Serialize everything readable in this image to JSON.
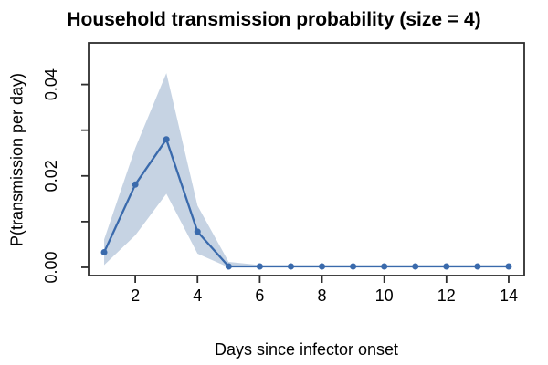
{
  "chart_data": {
    "type": "line",
    "title": "Household transmission probability (size = 4)",
    "xlabel": "Days since infector onset",
    "ylabel": "P(transmission per day)",
    "x": [
      1,
      2,
      3,
      4,
      5,
      6,
      7,
      8,
      9,
      10,
      11,
      12,
      13,
      14
    ],
    "series": {
      "mean": [
        0.0033,
        0.0181,
        0.028,
        0.0078,
        0.0002,
        0.0002,
        0.0002,
        0.0002,
        0.0002,
        0.0002,
        0.0002,
        0.0002,
        0.0002,
        0.0002
      ],
      "upper": [
        0.0061,
        0.0261,
        0.0425,
        0.0135,
        0.0012,
        0.0005,
        0.0005,
        0.0005,
        0.0005,
        0.0005,
        0.0005,
        0.0005,
        0.0005,
        0.0005
      ],
      "lower": [
        0.0005,
        0.007,
        0.0161,
        0.003,
        0.0,
        0.0,
        0.0,
        0.0,
        0.0,
        0.0,
        0.0,
        0.0,
        0.0,
        0.0
      ]
    },
    "xlim": [
      0.5,
      14.5
    ],
    "ylim": [
      -0.0018,
      0.0491
    ],
    "x_ticks": [
      {
        "v": 2,
        "label": "2"
      },
      {
        "v": 4,
        "label": "4"
      },
      {
        "v": 6,
        "label": "6"
      },
      {
        "v": 8,
        "label": "8"
      },
      {
        "v": 10,
        "label": "10"
      },
      {
        "v": 12,
        "label": "12"
      },
      {
        "v": 14,
        "label": "14"
      }
    ],
    "y_ticks": [
      {
        "v": 0.0,
        "label": "0.00"
      },
      {
        "v": 0.01,
        "label": ""
      },
      {
        "v": 0.02,
        "label": "0.02"
      },
      {
        "v": 0.03,
        "label": ""
      },
      {
        "v": 0.04,
        "label": "0.04"
      }
    ],
    "grid": false,
    "legend": "none",
    "colors": {
      "line": "#3a6aac",
      "point": "#3a6aac",
      "band": "#c6d3e3",
      "axis": "#2e2e2e",
      "text": "#000000"
    }
  }
}
